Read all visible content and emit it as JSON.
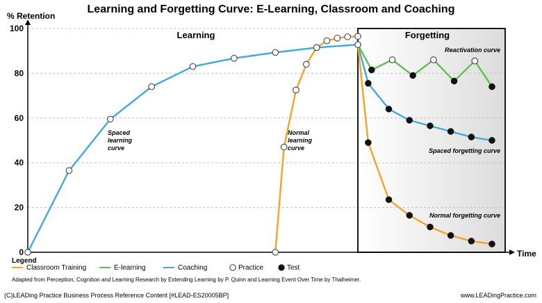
{
  "chart_data": {
    "type": "line",
    "title": "Learning and Forgetting Curve: E-Learning, Classroom and Coaching",
    "ylabel": "% Retention",
    "xlabel": "Time",
    "ylim": [
      0,
      100
    ],
    "yticks": [
      "0",
      "20",
      "40",
      "60",
      "80",
      "100"
    ],
    "grid": "horizontal dashed",
    "regions": {
      "learning": "Learning",
      "forgetting": "Forgetting"
    },
    "colors": {
      "classroom": "#f7a226",
      "elearning": "#5cc04c",
      "coaching": "#3fa9dc",
      "practice_fill": "#ffffff",
      "test_fill": "#111111",
      "forgetting_bg": "#eeeeee"
    },
    "series": [
      {
        "name": "Coaching",
        "color_key": "coaching",
        "points": [
          {
            "x": 0,
            "y": 0,
            "marker": "practice"
          },
          {
            "x": 12,
            "y": 36.5,
            "marker": "practice"
          },
          {
            "x": 24,
            "y": 59.5,
            "marker": "practice"
          },
          {
            "x": 36,
            "y": 74,
            "marker": "practice"
          },
          {
            "x": 48,
            "y": 83,
            "marker": "practice"
          },
          {
            "x": 60,
            "y": 86.7,
            "marker": "practice"
          },
          {
            "x": 72,
            "y": 89.3,
            "marker": "practice"
          },
          {
            "x": 84,
            "y": 91.5,
            "marker": "practice"
          },
          {
            "x": 96,
            "y": 92.8,
            "marker": "practice"
          }
        ]
      },
      {
        "name": "Coaching",
        "color_key": "coaching",
        "points": [
          {
            "x": 96,
            "y": 92.8,
            "marker": "none"
          },
          {
            "x": 99,
            "y": 75.5,
            "marker": "test"
          },
          {
            "x": 105,
            "y": 64,
            "marker": "test"
          },
          {
            "x": 111,
            "y": 59,
            "marker": "test"
          },
          {
            "x": 117,
            "y": 56.5,
            "marker": "test"
          },
          {
            "x": 123,
            "y": 54,
            "marker": "test"
          },
          {
            "x": 129,
            "y": 51.5,
            "marker": "test"
          },
          {
            "x": 135,
            "y": 50,
            "marker": "test"
          }
        ]
      },
      {
        "name": "Classroom Training",
        "color_key": "classroom",
        "points": [
          {
            "x": 72,
            "y": 0,
            "marker": "practice"
          },
          {
            "x": 74.5,
            "y": 47,
            "marker": "practice"
          },
          {
            "x": 78,
            "y": 72.5,
            "marker": "practice"
          },
          {
            "x": 81,
            "y": 84,
            "marker": "practice"
          },
          {
            "x": 84,
            "y": 91.5,
            "marker": "practice"
          },
          {
            "x": 87,
            "y": 94.5,
            "marker": "practice"
          },
          {
            "x": 90,
            "y": 95.7,
            "marker": "practice"
          },
          {
            "x": 93,
            "y": 96.3,
            "marker": "practice"
          },
          {
            "x": 96,
            "y": 96.5,
            "marker": "practice"
          }
        ]
      },
      {
        "name": "Classroom Training",
        "color_key": "classroom",
        "points": [
          {
            "x": 96,
            "y": 92.8,
            "marker": "none"
          },
          {
            "x": 99,
            "y": 49,
            "marker": "test"
          },
          {
            "x": 105,
            "y": 23.5,
            "marker": "test"
          },
          {
            "x": 111,
            "y": 16.5,
            "marker": "test"
          },
          {
            "x": 117,
            "y": 11.3,
            "marker": "test"
          },
          {
            "x": 123,
            "y": 7.5,
            "marker": "test"
          },
          {
            "x": 129,
            "y": 5,
            "marker": "test"
          },
          {
            "x": 135,
            "y": 3.7,
            "marker": "test"
          }
        ]
      },
      {
        "name": "E-learning",
        "color_key": "elearning",
        "points": [
          {
            "x": 96,
            "y": 92.8,
            "marker": "none"
          },
          {
            "x": 100,
            "y": 81.5,
            "marker": "test"
          },
          {
            "x": 106,
            "y": 86,
            "marker": "practice"
          },
          {
            "x": 112,
            "y": 79,
            "marker": "test"
          },
          {
            "x": 118,
            "y": 86,
            "marker": "practice"
          },
          {
            "x": 124,
            "y": 76.5,
            "marker": "test"
          },
          {
            "x": 130,
            "y": 85.5,
            "marker": "practice"
          },
          {
            "x": 135,
            "y": 74,
            "marker": "test"
          }
        ]
      }
    ],
    "annotations": {
      "spaced_learning": [
        "Spaced",
        "learning",
        "curve"
      ],
      "normal_learning": [
        "Normal",
        "learning",
        "curve"
      ],
      "reactivation": "Reactivation curve",
      "spaced_forgetting": "Spaced forgetting curve",
      "normal_forgetting": "Normal forgetting curve"
    },
    "legend": {
      "title": "Legend",
      "items": [
        {
          "label": "Classroom Training",
          "kind": "line",
          "color_key": "classroom"
        },
        {
          "label": "E-learning",
          "kind": "line",
          "color_key": "elearning"
        },
        {
          "label": "Coaching",
          "kind": "line",
          "color_key": "coaching"
        },
        {
          "label": "Practice",
          "kind": "marker",
          "marker": "practice"
        },
        {
          "label": "Test",
          "kind": "marker",
          "marker": "test"
        }
      ]
    },
    "source": "Adapted from Perception, Cognition and Learning Research by Extending Learning by P. Quinn and Learning Event Over Time by Thalheimer."
  },
  "footer": {
    "left": "(C)LEADing Practice Business Process Reference Content [#LEAD-ES20005BP]",
    "right": "www.LEADingPractice.com"
  }
}
